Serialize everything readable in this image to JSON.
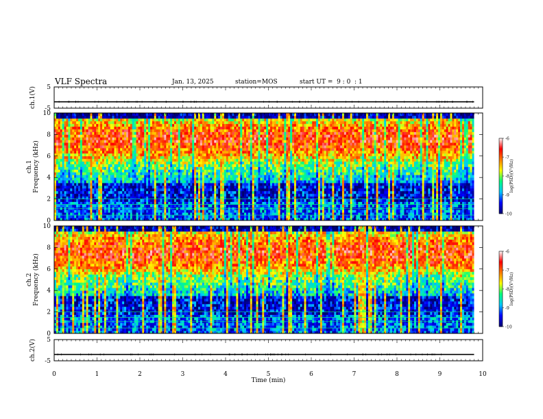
{
  "header": {
    "title": "VLF Spectra",
    "date": "Jan. 13, 2025",
    "station": "station=MOS",
    "start": "start UT =  9 : 0  : 1"
  },
  "chart_data": [
    {
      "type": "line",
      "name": "ch1-waveform",
      "ylabel": "ch.1(V)",
      "ylim": [
        -5,
        5
      ],
      "yticks": [
        5,
        -5
      ],
      "xlim": [
        0,
        10
      ],
      "series": [
        {
          "values": [
            -2,
            -2
          ],
          "x": [
            0,
            9.8
          ]
        }
      ]
    },
    {
      "type": "heatmap",
      "name": "ch1-spectrogram",
      "ylabel": "ch.1\nFrequency (kHz)",
      "ylim": [
        0,
        10
      ],
      "yticks": [
        0,
        2,
        4,
        6,
        8,
        10
      ],
      "xlim": [
        0,
        10
      ],
      "data_xmax": 9.8,
      "colorbar": {
        "label": "log(PSD)(V²/Hz)",
        "range": [
          -10,
          -6
        ],
        "ticks": [
          -6,
          -7,
          -8,
          -9,
          -10
        ]
      }
    },
    {
      "type": "heatmap",
      "name": "ch2-spectrogram",
      "ylabel": "ch.2\nFrequency (kHz)",
      "ylim": [
        0,
        10
      ],
      "yticks": [
        0,
        2,
        4,
        6,
        8,
        10
      ],
      "xlim": [
        0,
        10
      ],
      "data_xmax": 9.8,
      "colorbar": {
        "label": "log(PSD)(V²/Hz)",
        "range": [
          -10,
          -6
        ],
        "ticks": [
          -6,
          -7,
          -8,
          -9,
          -10
        ]
      }
    },
    {
      "type": "line",
      "name": "ch2-waveform",
      "ylabel": "ch.2(V)",
      "ylim": [
        -5,
        5
      ],
      "yticks": [
        5,
        -5
      ],
      "xlim": [
        0,
        10
      ],
      "xlabel": "Time (min)",
      "xticks": [
        0,
        1,
        2,
        3,
        4,
        5,
        6,
        7,
        8,
        9,
        10
      ],
      "series": [
        {
          "values": [
            -2,
            -2
          ],
          "x": [
            0,
            9.8
          ]
        }
      ]
    }
  ],
  "colors": {
    "axis": "#000000",
    "colormap": [
      "#000070",
      "#0000ff",
      "#00c8ff",
      "#00ff80",
      "#ffff00",
      "#ff7f00",
      "#ff0000",
      "#ffffff"
    ]
  }
}
